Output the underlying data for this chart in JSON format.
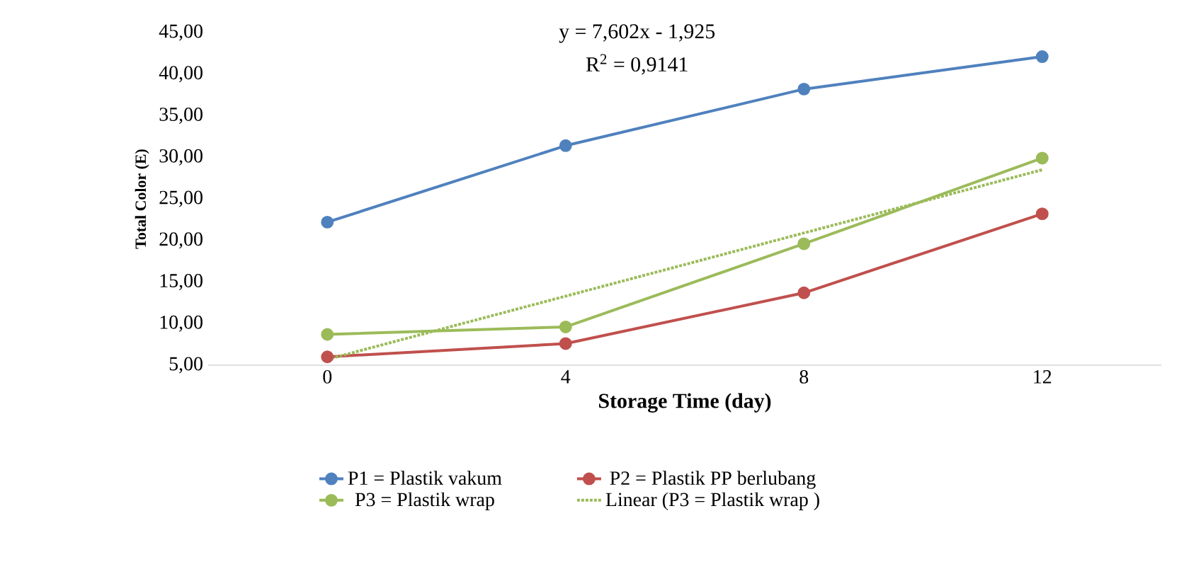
{
  "chart_data": {
    "type": "line",
    "xlabel": "Storage Time (day)",
    "ylabel": "Total Color (E)",
    "categories": [
      "0",
      "4",
      "8",
      "12"
    ],
    "series": [
      {
        "name": "P1 = Plastik vakum",
        "color": "#4f81bd",
        "values": [
          22.2,
          31.4,
          38.2,
          42.1
        ]
      },
      {
        "name": "P2 = Plastik PP berlubang",
        "color": "#c0504d",
        "values": [
          6.0,
          7.6,
          13.7,
          23.2
        ]
      },
      {
        "name": "P3 = Plastik wrap",
        "color": "#9bbb59",
        "values": [
          8.7,
          9.6,
          19.6,
          29.9
        ]
      },
      {
        "name": "Linear (P3 = Plastik wrap )",
        "color": "#9bbb59",
        "values": [
          5.7,
          13.3,
          20.9,
          28.5
        ],
        "marker": "none",
        "line_style": "dotted"
      }
    ],
    "ylim": [
      5,
      45
    ],
    "yticks": [
      {
        "value": 5,
        "label": "5,00"
      },
      {
        "value": 10,
        "label": "10,00"
      },
      {
        "value": 15,
        "label": "15,00"
      },
      {
        "value": 20,
        "label": "20,00"
      },
      {
        "value": 25,
        "label": "25,00"
      },
      {
        "value": 30,
        "label": "30,00"
      },
      {
        "value": 35,
        "label": "35,00"
      },
      {
        "value": 40,
        "label": "40,00"
      },
      {
        "value": 45,
        "label": "45,00"
      }
    ],
    "annotations": [
      "y = 7,602x - 1,925",
      "R$^{2}$ = 0,9141"
    ],
    "marker": "circle",
    "line_style": "solid",
    "grid": false,
    "legend": "bottom"
  }
}
